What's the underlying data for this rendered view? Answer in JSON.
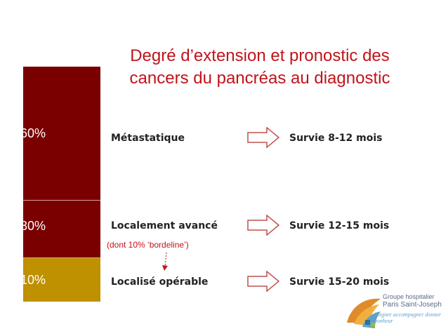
{
  "title_line1": "Degré d’extension et pronostic des",
  "title_line2": "cancers du pancréas au diagnostic",
  "colors": {
    "title": "#c0141b",
    "bar_dark": "#7a0000",
    "bar_gold": "#bf9000",
    "note": "#c0141b"
  },
  "segments": [
    {
      "label": "60%",
      "share": 60,
      "color": "#7a0000"
    },
    {
      "label": "30%",
      "share": 30,
      "color": "#7a0000"
    },
    {
      "label": "10%",
      "share": 10,
      "color": "#bf9000"
    }
  ],
  "rows": [
    {
      "stage": "Métastatique",
      "survival": "Survie 8-12 mois"
    },
    {
      "stage": "Localement avancé",
      "survival": "Survie 12-15 mois"
    },
    {
      "stage": "Localisé opérable",
      "survival": "Survie 15-20 mois"
    }
  ],
  "note": "(dont 10% ‘bordeline’)",
  "logo": {
    "line1": "Groupe hospitalier",
    "line2": "Paris Saint-Joseph",
    "line3": "Soigner accompagner donner bonheur"
  }
}
